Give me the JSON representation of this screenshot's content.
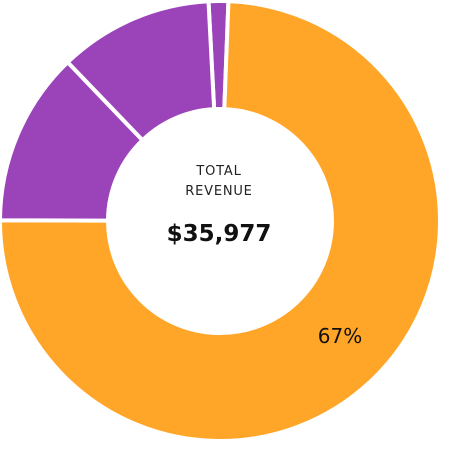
{
  "chart_data": {
    "type": "pie",
    "variant": "donut",
    "center": {
      "label_line1": "TOTAL",
      "label_line2": "REVENUE",
      "value": "$35,977"
    },
    "slices": [
      {
        "value": 1.3,
        "color": "#9b44b9",
        "label": ""
      },
      {
        "value": 67.0,
        "color": "#ffa528",
        "label": "67%"
      },
      {
        "value": 11.5,
        "color": "#9b44b9",
        "label": ""
      },
      {
        "value": 10.2,
        "color": "#9b44b9",
        "label": ""
      }
    ]
  }
}
